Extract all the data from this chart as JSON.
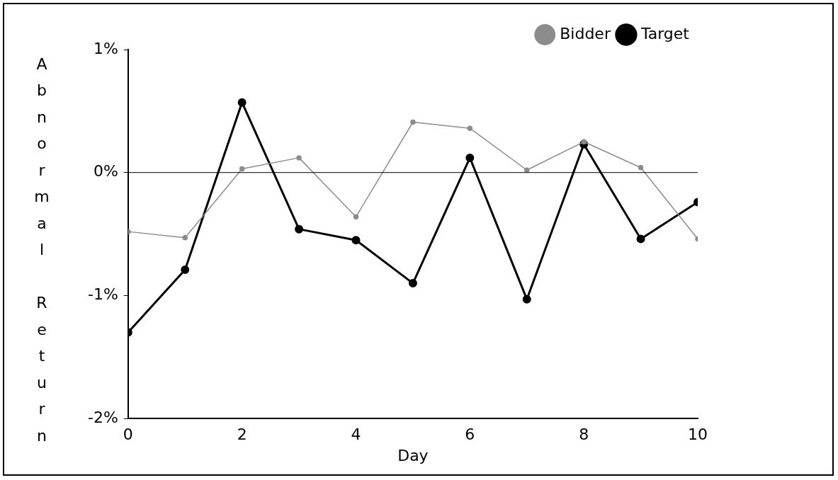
{
  "chart_data": {
    "type": "line",
    "xlabel": "Day",
    "ylabel": "Abnormal Return",
    "x": [
      0,
      1,
      2,
      3,
      4,
      5,
      6,
      7,
      8,
      9,
      10
    ],
    "series": [
      {
        "name": "Bidder",
        "color": "#8c8c8c",
        "values": [
          -0.48,
          -0.53,
          0.03,
          0.12,
          -0.36,
          0.41,
          0.36,
          0.02,
          0.25,
          0.04,
          -0.54
        ]
      },
      {
        "name": "Target",
        "color": "#000000",
        "values": [
          -1.3,
          -0.79,
          0.57,
          -0.46,
          -0.55,
          -0.9,
          0.12,
          -1.03,
          0.23,
          -0.54,
          -0.24
        ]
      }
    ],
    "xlim": [
      0,
      10
    ],
    "xticks": [
      0,
      2,
      4,
      6,
      8,
      10
    ],
    "ylim": [
      -2,
      1
    ],
    "yticks": [
      {
        "value": -2,
        "label": "-2%"
      },
      {
        "value": -1,
        "label": "-1%"
      },
      {
        "value": 0,
        "label": "0%"
      },
      {
        "value": 1,
        "label": "1%"
      }
    ],
    "ref_lines": [
      {
        "axis": "y",
        "value": 0,
        "color": "#000000"
      }
    ],
    "grid": false,
    "legend": "top right",
    "marker": "circle",
    "line_style": "solid"
  }
}
